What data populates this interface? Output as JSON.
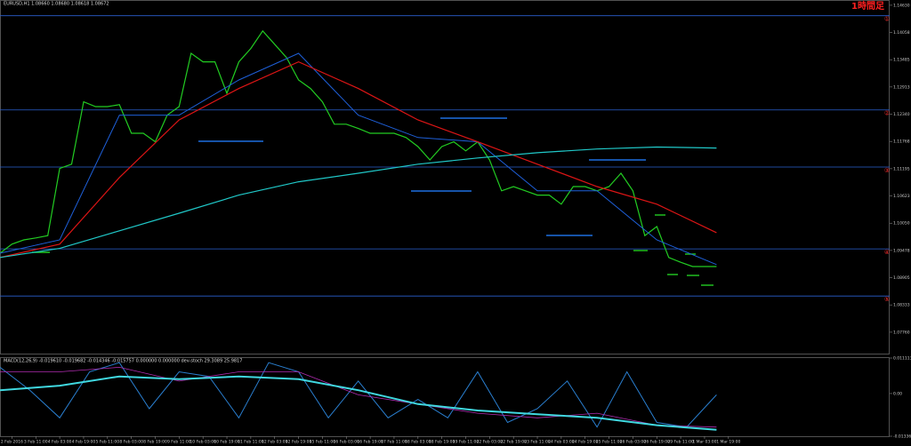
{
  "chart_data": [
    {
      "type": "line",
      "title": "EURUSD,H1 1.08660 1.08680 1.08618 1.08672",
      "timeframe_label": "1時間足",
      "xlim": [
        0,
        74.5
      ],
      "ylim": [
        1.0731,
        1.1474
      ],
      "xticks": [
        {
          "value": 1,
          "label": "2 Feb 2016"
        },
        {
          "value": 3,
          "label": "3 Feb 11:00"
        },
        {
          "value": 5,
          "label": "4 Feb 03:00"
        },
        {
          "value": 7,
          "label": "4 Feb 19:00"
        },
        {
          "value": 9,
          "label": "5 Feb 11:00"
        },
        {
          "value": 11,
          "label": "8 Feb 03:00"
        },
        {
          "value": 13,
          "label": "8 Feb 19:00"
        },
        {
          "value": 15,
          "label": "9 Feb 11:00"
        },
        {
          "value": 17,
          "label": "10 Feb 03:00"
        },
        {
          "value": 19,
          "label": "10 Feb 19:00"
        },
        {
          "value": 21,
          "label": "11 Feb 11:00"
        },
        {
          "value": 23,
          "label": "12 Feb 03:00"
        },
        {
          "value": 25,
          "label": "12 Feb 19:00"
        },
        {
          "value": 27,
          "label": "15 Feb 11:00"
        },
        {
          "value": 29,
          "label": "16 Feb 03:00"
        },
        {
          "value": 31,
          "label": "16 Feb 19:00"
        },
        {
          "value": 33,
          "label": "17 Feb 11:00"
        },
        {
          "value": 35,
          "label": "18 Feb 03:00"
        },
        {
          "value": 37,
          "label": "18 Feb 19:00"
        },
        {
          "value": 39,
          "label": "19 Feb 11:00"
        },
        {
          "value": 41,
          "label": "22 Feb 03:00"
        },
        {
          "value": 43,
          "label": "22 Feb 19:00"
        },
        {
          "value": 45,
          "label": "23 Feb 11:00"
        },
        {
          "value": 47,
          "label": "24 Feb 03:00"
        },
        {
          "value": 49,
          "label": "24 Feb 19:00"
        },
        {
          "value": 51,
          "label": "25 Feb 11:00"
        },
        {
          "value": 53,
          "label": "26 Feb 03:00"
        },
        {
          "value": 55,
          "label": "26 Feb 19:00"
        },
        {
          "value": 57,
          "label": "29 Feb 11:00"
        },
        {
          "value": 59,
          "label": "1 Mar 03:00"
        },
        {
          "value": 61,
          "label": "1 Mar 19:00"
        }
      ],
      "yticks": [
        {
          "value": 1.1463,
          "label": "1.14630"
        },
        {
          "value": 1.14058,
          "label": "1.14058"
        },
        {
          "value": 1.13485,
          "label": "1.13485"
        },
        {
          "value": 1.12913,
          "label": "1.12913"
        },
        {
          "value": 1.1234,
          "label": "1.12340"
        },
        {
          "value": 1.11768,
          "label": "1.11768"
        },
        {
          "value": 1.11195,
          "label": "1.11195"
        },
        {
          "value": 1.10623,
          "label": "1.10623"
        },
        {
          "value": 1.1005,
          "label": "1.10050"
        },
        {
          "value": 1.09478,
          "label": "1.09478"
        },
        {
          "value": 1.08905,
          "label": "1.08905"
        },
        {
          "value": 1.08333,
          "label": "1.08333"
        },
        {
          "value": 1.0776,
          "label": "1.07760"
        }
      ],
      "levels": [
        {
          "value": 1.1441,
          "label": "①"
        },
        {
          "value": 1.1243,
          "label": "②"
        },
        {
          "value": 1.1123,
          "label": "③"
        },
        {
          "value": 1.0951,
          "label": "④"
        },
        {
          "value": 1.0852,
          "label": "⑤"
        }
      ],
      "series": [
        {
          "name": "EURUSD",
          "color": "#22cc22",
          "width": 1.2,
          "x": [
            0,
            1,
            2,
            3,
            4,
            5,
            6,
            7,
            8,
            9,
            10,
            11,
            12,
            13,
            14,
            15,
            16,
            17,
            18,
            19,
            20,
            21,
            22,
            23,
            24,
            25,
            26,
            27,
            28,
            29,
            30,
            31,
            32,
            33,
            34,
            35,
            36,
            37,
            38,
            39,
            40,
            41,
            42,
            43,
            44,
            45,
            46,
            47,
            48,
            49,
            50,
            51,
            52,
            53,
            54,
            55,
            56,
            57,
            58,
            59,
            60
          ],
          "values": [
            1.0942,
            1.0961,
            1.097,
            1.0974,
            1.0979,
            1.112,
            1.1129,
            1.126,
            1.125,
            1.125,
            1.1254,
            1.1194,
            1.1194,
            1.1176,
            1.1232,
            1.125,
            1.1362,
            1.1344,
            1.1344,
            1.1278,
            1.1344,
            1.1372,
            1.1409,
            1.1381,
            1.1353,
            1.1306,
            1.1288,
            1.126,
            1.1213,
            1.1213,
            1.1204,
            1.1194,
            1.1194,
            1.1194,
            1.1185,
            1.1166,
            1.1138,
            1.1166,
            1.1176,
            1.1157,
            1.1176,
            1.1138,
            1.1073,
            1.1082,
            1.1073,
            1.1064,
            1.1064,
            1.1045,
            1.1082,
            1.1082,
            1.1073,
            1.1082,
            1.111,
            1.1073,
            1.0979,
            1.0998,
            1.0933,
            1.0923,
            1.0914,
            1.0914,
            1.0914
          ]
        },
        {
          "name": "MA fast",
          "color": "#1e5fd8",
          "width": 1,
          "x": [
            0,
            5,
            10,
            15,
            20,
            25,
            30,
            35,
            40,
            45,
            50,
            55,
            60
          ],
          "values": [
            1.0942,
            1.097,
            1.1232,
            1.1232,
            1.1306,
            1.1362,
            1.1232,
            1.1185,
            1.1176,
            1.1073,
            1.1073,
            1.097,
            1.0918
          ]
        },
        {
          "name": "MA mid",
          "color": "#dd1515",
          "width": 1.2,
          "x": [
            0,
            5,
            10,
            15,
            20,
            25,
            30,
            35,
            40,
            45,
            50,
            55,
            60
          ],
          "values": [
            1.0933,
            1.0961,
            1.1101,
            1.1222,
            1.1288,
            1.1344,
            1.1288,
            1.1222,
            1.1176,
            1.1129,
            1.1082,
            1.1045,
            1.0985
          ]
        },
        {
          "name": "MA slow",
          "color": "#20c8c8",
          "width": 1.2,
          "x": [
            0,
            5,
            10,
            15,
            20,
            25,
            30,
            35,
            40,
            45,
            50,
            55,
            60
          ],
          "values": [
            1.0933,
            1.0952,
            1.0989,
            1.1026,
            1.1064,
            1.1092,
            1.111,
            1.1129,
            1.1142,
            1.1153,
            1.1161,
            1.1165,
            1.1163
          ]
        }
      ]
    },
    {
      "type": "line",
      "title": "MACD(12,26,9) -0.019610 -0.019682 -0.014346 -0.015757 0.000000 0.000000 dev-stoch 29.3089 25.9817",
      "xlim": [
        0,
        74.5
      ],
      "ylim": [
        -0.013365,
        0.011113
      ],
      "yticks": [
        {
          "value": 0.011113,
          "label": "0.011113"
        },
        {
          "value": 0,
          "label": "0.00"
        },
        {
          "value": -0.013365,
          "label": "-0.013365"
        }
      ],
      "series": [
        {
          "name": "oscillator",
          "color": "#2a7fd0",
          "width": 1,
          "x": [
            0,
            2.5,
            5,
            7.5,
            10,
            12.5,
            15,
            17.5,
            20,
            22.5,
            25,
            27.5,
            30,
            32.5,
            35,
            37.5,
            40,
            42.5,
            45,
            47.5,
            50,
            52.5,
            55,
            57.5,
            60
          ],
          "values": [
            0.00823,
            0.00103,
            -0.00761,
            0.00679,
            0.00967,
            -0.00473,
            0.00679,
            0.00535,
            -0.00761,
            0.00967,
            0.00679,
            -0.00761,
            0.00391,
            -0.00761,
            -0.00185,
            -0.00761,
            0.00679,
            -0.00905,
            -0.00473,
            0.00391,
            -0.01049,
            0.00679,
            -0.00905,
            -0.01049,
            -0.00041
          ]
        },
        {
          "name": "signal",
          "color": "#b02cb0",
          "width": 0.8,
          "x": [
            0,
            5,
            10,
            15,
            20,
            25,
            30,
            35,
            40,
            45,
            50,
            55,
            60
          ],
          "values": [
            0.00679,
            0.00679,
            0.00823,
            0.00391,
            0.00679,
            0.00679,
            -0.00041,
            -0.00329,
            -0.00617,
            -0.00761,
            -0.00617,
            -0.00991,
            -0.01049
          ]
        },
        {
          "name": "trend",
          "color": "#40d8e0",
          "width": 2,
          "x": [
            0,
            5,
            10,
            15,
            20,
            25,
            30,
            35,
            40,
            45,
            50,
            55,
            60
          ],
          "values": [
            0.00103,
            0.00247,
            0.00535,
            0.00449,
            0.00535,
            0.00449,
            0.00103,
            -0.00329,
            -0.00531,
            -0.00646,
            -0.00761,
            -0.00991,
            -0.01135
          ]
        }
      ]
    }
  ]
}
